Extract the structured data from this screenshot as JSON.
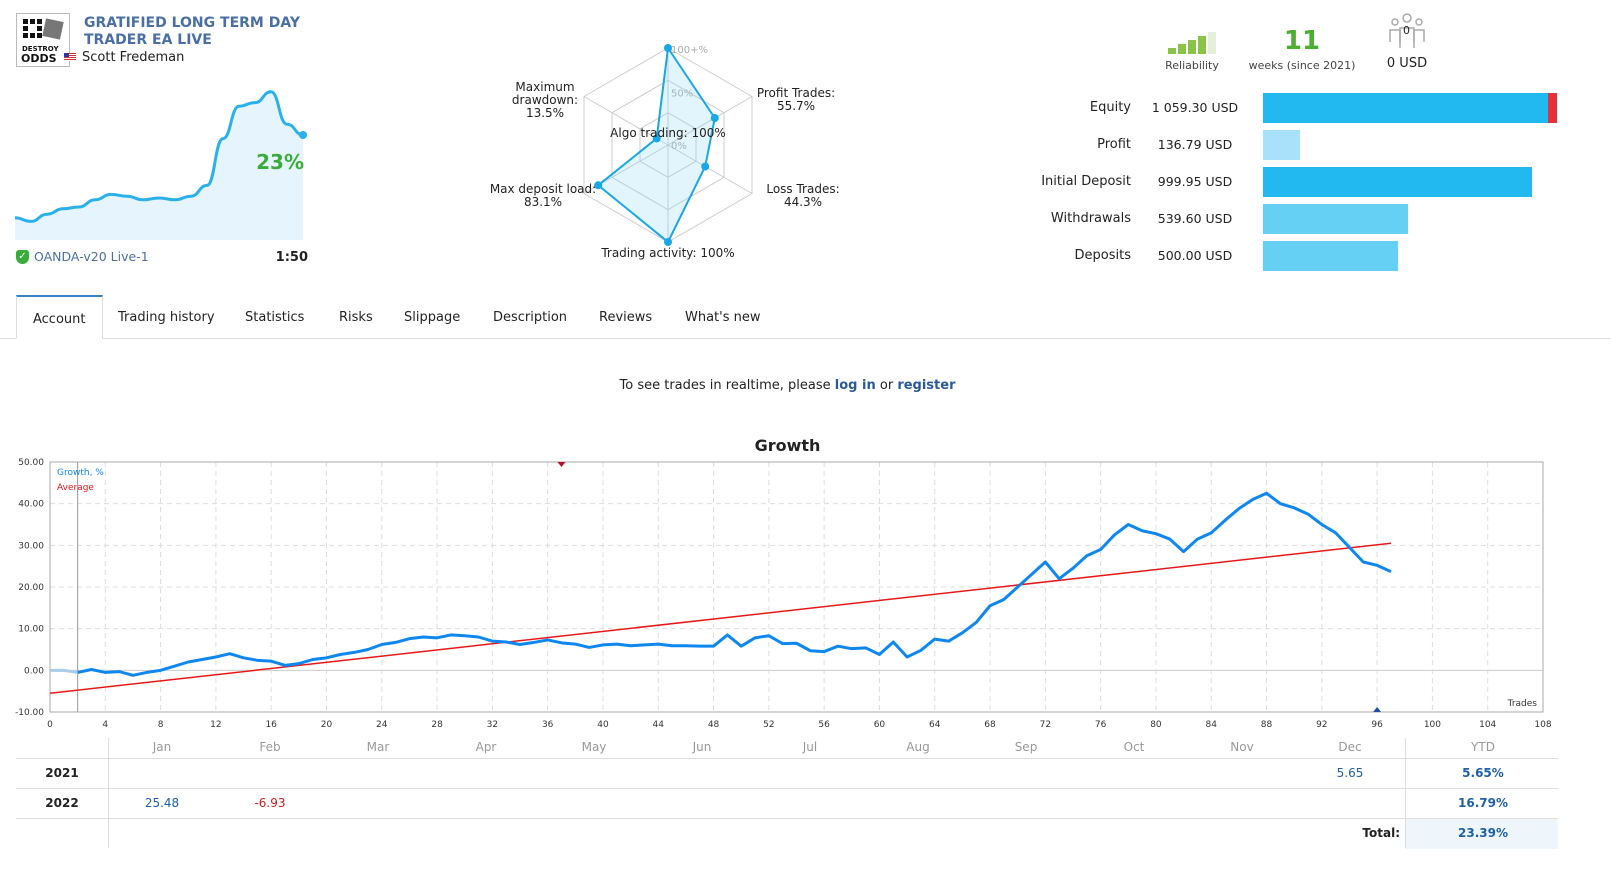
{
  "header": {
    "title": "GRATIFIED LONG TERM DAY TRADER EA LIVE",
    "author": "Scott Fredeman",
    "logo_text": "DESTROY ODDS",
    "growth_pct": "23%",
    "server": "OANDA-v20 Live-1",
    "leverage": "1:50",
    "sparkline": [
      0,
      -1,
      1,
      2.5,
      3,
      5,
      6.5,
      6,
      5,
      5.5,
      5,
      6,
      9,
      22,
      31,
      32,
      35,
      26,
      23
    ]
  },
  "radar": {
    "scale_labels": [
      "100+%",
      "50%",
      "0%"
    ],
    "axes": [
      {
        "label": "Algo trading: 100%",
        "value": 100
      },
      {
        "label": "Profit Trades: 55.7%",
        "value": 55.7
      },
      {
        "label": "Loss Trades: 44.3%",
        "value": 44.3
      },
      {
        "label": "Trading activity: 100%",
        "value": 100
      },
      {
        "label": "Max deposit load: 83.1%",
        "value": 83.1
      },
      {
        "label": "Maximum drawdown: 13.5%",
        "value": 13.5
      }
    ]
  },
  "summary": {
    "reliability_label": "Reliability",
    "reliability_level": 4,
    "reliability_max": 5,
    "weeks": "11",
    "weeks_label": "weeks (since 2021)",
    "subscribers": "0",
    "subscribers_value": "0 USD"
  },
  "stats": [
    {
      "label": "Equity",
      "value": "1 059.30 USD",
      "amount": 1059.3
    },
    {
      "label": "Profit",
      "value": "136.79 USD",
      "amount": 136.79
    },
    {
      "label": "Initial Deposit",
      "value": "999.95 USD",
      "amount": 999.95
    },
    {
      "label": "Withdrawals",
      "value": "539.60 USD",
      "amount": 539.6
    },
    {
      "label": "Deposits",
      "value": "500.00 USD",
      "amount": 500.0
    }
  ],
  "colors": {
    "accent": "#3b82c4",
    "bar_main": "#22b8f0",
    "bar_light": "#66cff4",
    "bar_profit": "#a9e0fa",
    "equity_loss": "#e8303a",
    "growth": "#0f87f0",
    "average": "#e81818",
    "positive": "#1f5fa8",
    "negative": "#c81e1e"
  },
  "tabs": [
    "Account",
    "Trading history",
    "Statistics",
    "Risks",
    "Slippage",
    "Description",
    "Reviews",
    "What's new"
  ],
  "message": {
    "before": "To see trades in realtime, please ",
    "login": "log in",
    "middle": " or ",
    "register": "register"
  },
  "chart_data": {
    "type": "line",
    "title": "Growth",
    "xlabel": "Trades",
    "ylabel": "",
    "xlim": [
      0,
      108
    ],
    "ylim": [
      -10,
      50
    ],
    "grid": true,
    "legend": "top-left",
    "x_ticks": [
      0,
      4,
      8,
      12,
      16,
      20,
      24,
      28,
      32,
      36,
      40,
      44,
      48,
      52,
      56,
      60,
      64,
      68,
      72,
      76,
      80,
      84,
      88,
      92,
      96,
      100,
      104,
      108
    ],
    "y_ticks": [
      "50.00",
      "40.00",
      "30.00",
      "20.00",
      "10.00",
      "0.00",
      "-10.00"
    ],
    "series": [
      {
        "name": "Growth, %",
        "values": [
          0,
          0,
          -0.5,
          0.2,
          -0.5,
          -0.3,
          -1.2,
          -0.5,
          0,
          1,
          2,
          2.6,
          3.2,
          4,
          3,
          2.4,
          2.2,
          1.2,
          1.6,
          2.6,
          3,
          3.8,
          4.3,
          5,
          6.2,
          6.7,
          7.6,
          8,
          7.8,
          8.5,
          8.3,
          8,
          7,
          6.8,
          6.2,
          6.7,
          7.3,
          6.6,
          6.3,
          5.5,
          6.1,
          6.3,
          5.9,
          6.1,
          6.3,
          5.9,
          5.9,
          5.8,
          5.8,
          8.5,
          5.8,
          7.8,
          8.3,
          6.4,
          6.5,
          4.7,
          4.5,
          5.8,
          5.2,
          5.4,
          3.8,
          6.8,
          3.2,
          4.8,
          7.5,
          7,
          9,
          11.5,
          15.5,
          17,
          20,
          23,
          26,
          22,
          24.5,
          27.5,
          29,
          32.5,
          35,
          33.5,
          32.8,
          31.5,
          28.5,
          31.5,
          33,
          36,
          38.8,
          41,
          42.5,
          40,
          39,
          37.5,
          35,
          33,
          29.5,
          26,
          25.2,
          23.7
        ]
      },
      {
        "name": "Average",
        "line": [
          [
            0,
            -5.5
          ],
          [
            97,
            30.5
          ]
        ]
      }
    ],
    "markers": [
      {
        "trade": 37,
        "position": "top",
        "color": "#b0102a"
      },
      {
        "trade": 96,
        "position": "bottom",
        "color": "#1f4f9c"
      }
    ]
  },
  "monthly": {
    "months": [
      "Jan",
      "Feb",
      "Mar",
      "Apr",
      "May",
      "Jun",
      "Jul",
      "Aug",
      "Sep",
      "Oct",
      "Nov",
      "Dec"
    ],
    "ytd_label": "YTD",
    "rows": [
      {
        "year": "2021",
        "values": {
          "Dec": "5.65"
        },
        "ytd": "5.65%"
      },
      {
        "year": "2022",
        "values": {
          "Jan": "25.48",
          "Feb": "-6.93"
        },
        "ytd": "16.79%"
      }
    ],
    "total_label": "Total:",
    "total": "23.39%"
  }
}
